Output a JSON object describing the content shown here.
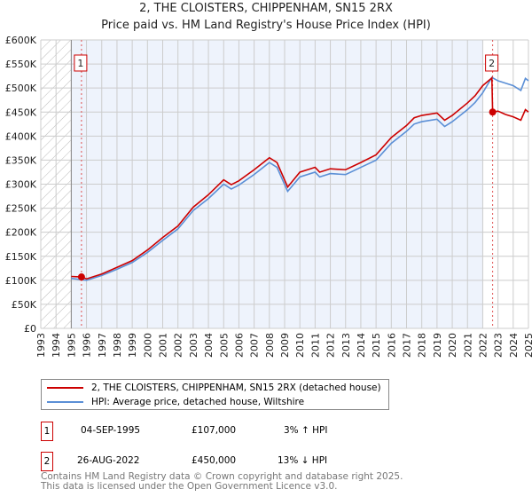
{
  "chart_data": {
    "type": "line",
    "title": "2, THE CLOISTERS, CHIPPENHAM, SN15 2RX",
    "subtitle": "Price paid vs. HM Land Registry's House Price Index (HPI)",
    "xlim": [
      1993,
      2025
    ],
    "ylim": [
      0,
      600000
    ],
    "x_ticks": [
      "1993",
      "1994",
      "1995",
      "1996",
      "1997",
      "1998",
      "1999",
      "2000",
      "2001",
      "2002",
      "2003",
      "2004",
      "2005",
      "2006",
      "2007",
      "2008",
      "2009",
      "2010",
      "2011",
      "2012",
      "2013",
      "2014",
      "2015",
      "2016",
      "2017",
      "2018",
      "2019",
      "2020",
      "2021",
      "2022",
      "2023",
      "2024",
      "2025"
    ],
    "y_ticks": [
      "£0",
      "£50K",
      "£100K",
      "£150K",
      "£200K",
      "£250K",
      "£300K",
      "£350K",
      "£400K",
      "£450K",
      "£500K",
      "£550K",
      "£600K"
    ],
    "grid": true,
    "series": [
      {
        "name": "2, THE CLOISTERS, CHIPPENHAM, SN15 2RX (detached house)",
        "color": "#cc0000",
        "x": [
          1995,
          1995.67,
          1996,
          1997,
          1998,
          1999,
          2000,
          2001,
          2002,
          2003,
          2004,
          2005,
          2005.5,
          2006,
          2007,
          2008,
          2008.5,
          2009.2,
          2010,
          2011,
          2011.3,
          2012,
          2013,
          2014,
          2015,
          2016,
          2017,
          2017.5,
          2018,
          2019,
          2019.5,
          2020,
          2021,
          2021.5,
          2022,
          2022.6,
          2022.65,
          2023,
          2023.5,
          2024,
          2024.5,
          2024.8,
          2025
        ],
        "y": [
          108000,
          107000,
          103000,
          113000,
          127000,
          141000,
          163000,
          189000,
          213000,
          252000,
          278000,
          309000,
          299000,
          307000,
          330000,
          355000,
          345000,
          294000,
          325000,
          335000,
          325000,
          332000,
          330000,
          345000,
          361000,
          397000,
          422000,
          438000,
          443000,
          448000,
          433000,
          443000,
          469000,
          484000,
          505000,
          521000,
          450000,
          452000,
          445000,
          440000,
          433000,
          455000,
          450000
        ]
      },
      {
        "name": "HPI: Average price, detached house, Wiltshire",
        "color": "#5b8fd6",
        "x": [
          1995,
          1996,
          1997,
          1998,
          1999,
          2000,
          2001,
          2002,
          2003,
          2004,
          2005,
          2005.5,
          2006,
          2007,
          2008,
          2008.5,
          2009.2,
          2010,
          2011,
          2011.3,
          2012,
          2013,
          2014,
          2015,
          2016,
          2017,
          2017.5,
          2018,
          2019,
          2019.5,
          2020,
          2021,
          2021.5,
          2022,
          2022.6,
          2023,
          2023.5,
          2024,
          2024.5,
          2024.8,
          2025
        ],
        "y": [
          104000,
          100000,
          110000,
          123000,
          137000,
          158000,
          183000,
          207000,
          245000,
          270000,
          300000,
          290000,
          298000,
          320000,
          345000,
          335000,
          285000,
          315000,
          325000,
          315000,
          322000,
          320000,
          335000,
          350000,
          385000,
          410000,
          425000,
          430000,
          435000,
          420000,
          430000,
          455000,
          470000,
          490000,
          522000,
          515000,
          510000,
          505000,
          495000,
          520000,
          515000
        ]
      }
    ],
    "annotations": [
      {
        "label": "1",
        "x": 1995.67,
        "y": 107000
      },
      {
        "label": "2",
        "x": 2022.65,
        "y": 450000
      }
    ],
    "legend_position": "below"
  },
  "table": [
    {
      "num": "1",
      "date": "04-SEP-1995",
      "price": "£107,000",
      "hpi": "3% ↑ HPI"
    },
    {
      "num": "2",
      "date": "26-AUG-2022",
      "price": "£450,000",
      "hpi": "13% ↓ HPI"
    }
  ],
  "footer": {
    "line1": "Contains HM Land Registry data © Crown copyright and database right 2025.",
    "line2": "This data is licensed under the Open Government Licence v3.0."
  }
}
